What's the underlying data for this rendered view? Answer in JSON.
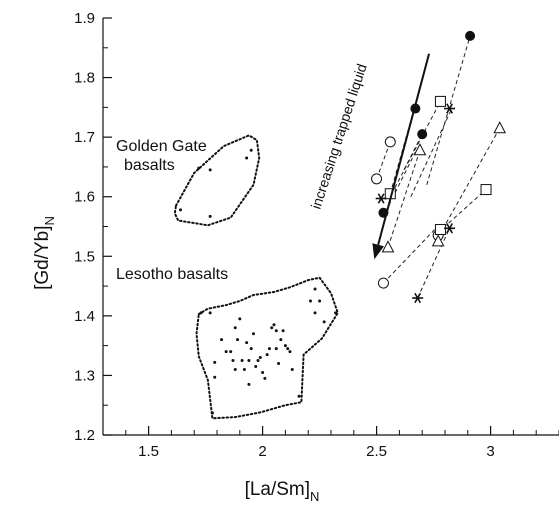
{
  "chart_data": {
    "type": "scatter",
    "xlabel": "[La/Sm]",
    "xlabel_sub": "N",
    "ylabel": "[Gd/Yb]",
    "ylabel_sub": "N",
    "xlim": [
      1.3,
      3.3
    ],
    "ylim": [
      1.2,
      1.9
    ],
    "x_ticks": [
      1.5,
      2,
      2.5,
      3
    ],
    "x_tick_labels": [
      "1.5",
      "2",
      "2.5",
      "3"
    ],
    "y_ticks": [
      1.2,
      1.3,
      1.4,
      1.5,
      1.6,
      1.7,
      1.8,
      1.9
    ],
    "y_tick_labels": [
      "1.2",
      "1.3",
      "1.4",
      "1.5",
      "1.6",
      "1.7",
      "1.8",
      "1.9"
    ],
    "grid": false,
    "annotations": {
      "golden_gate_line1": "Golden Gate",
      "golden_gate_line2": "basalts",
      "lesotho": "Lesotho basalts",
      "arrow_label": "increasing trapped liquid"
    },
    "regions": [
      {
        "label": "Golden Gate basalts",
        "outline": [
          [
            1.62,
            1.585
          ],
          [
            1.7,
            1.64
          ],
          [
            1.83,
            1.685
          ],
          [
            1.94,
            1.703
          ],
          [
            1.975,
            1.695
          ],
          [
            1.985,
            1.665
          ],
          [
            1.96,
            1.62
          ],
          [
            1.86,
            1.565
          ],
          [
            1.76,
            1.552
          ],
          [
            1.63,
            1.56
          ],
          [
            1.615,
            1.572
          ]
        ],
        "points": [
          [
            1.64,
            1.578
          ],
          [
            1.72,
            1.648
          ],
          [
            1.77,
            1.645
          ],
          [
            1.77,
            1.567
          ],
          [
            1.93,
            1.665
          ],
          [
            1.95,
            1.678
          ]
        ]
      },
      {
        "label": "Lesotho basalts",
        "outline": [
          [
            1.72,
            1.403
          ],
          [
            1.76,
            1.412
          ],
          [
            1.84,
            1.418
          ],
          [
            1.9,
            1.425
          ],
          [
            1.96,
            1.435
          ],
          [
            2.05,
            1.44
          ],
          [
            2.12,
            1.448
          ],
          [
            2.2,
            1.46
          ],
          [
            2.25,
            1.464
          ],
          [
            2.3,
            1.438
          ],
          [
            2.33,
            1.405
          ],
          [
            2.26,
            1.362
          ],
          [
            2.18,
            1.335
          ],
          [
            2.17,
            1.255
          ],
          [
            2.1,
            1.25
          ],
          [
            1.99,
            1.238
          ],
          [
            1.88,
            1.23
          ],
          [
            1.78,
            1.228
          ],
          [
            1.76,
            1.292
          ],
          [
            1.72,
            1.332
          ],
          [
            1.71,
            1.37
          ]
        ],
        "points": [
          [
            1.73,
            1.405
          ],
          [
            1.77,
            1.405
          ],
          [
            1.79,
            1.322
          ],
          [
            1.79,
            1.297
          ],
          [
            1.78,
            1.237
          ],
          [
            1.82,
            1.36
          ],
          [
            1.84,
            1.34
          ],
          [
            1.86,
            1.34
          ],
          [
            1.87,
            1.325
          ],
          [
            1.88,
            1.38
          ],
          [
            1.88,
            1.31
          ],
          [
            1.89,
            1.36
          ],
          [
            1.9,
            1.395
          ],
          [
            1.91,
            1.325
          ],
          [
            1.92,
            1.31
          ],
          [
            1.93,
            1.355
          ],
          [
            1.94,
            1.285
          ],
          [
            1.94,
            1.325
          ],
          [
            1.95,
            1.345
          ],
          [
            1.96,
            1.37
          ],
          [
            1.97,
            1.315
          ],
          [
            1.98,
            1.325
          ],
          [
            1.99,
            1.33
          ],
          [
            2.0,
            1.305
          ],
          [
            2.01,
            1.295
          ],
          [
            2.02,
            1.335
          ],
          [
            2.03,
            1.345
          ],
          [
            2.04,
            1.38
          ],
          [
            2.05,
            1.385
          ],
          [
            2.06,
            1.375
          ],
          [
            2.06,
            1.345
          ],
          [
            2.07,
            1.32
          ],
          [
            2.08,
            1.36
          ],
          [
            2.09,
            1.375
          ],
          [
            2.1,
            1.35
          ],
          [
            2.11,
            1.345
          ],
          [
            2.12,
            1.34
          ],
          [
            2.13,
            1.31
          ],
          [
            2.16,
            1.265
          ],
          [
            2.21,
            1.425
          ],
          [
            2.23,
            1.405
          ],
          [
            2.25,
            1.425
          ],
          [
            2.27,
            1.39
          ],
          [
            2.32,
            1.405
          ],
          [
            2.23,
            1.445
          ]
        ]
      }
    ],
    "tie_lines": [
      [
        [
          2.5,
          1.63
        ],
        [
          2.56,
          1.692
        ]
      ],
      [
        [
          2.56,
          1.605
        ],
        [
          2.67,
          1.755
        ]
      ],
      [
        [
          2.58,
          1.615
        ],
        [
          2.78,
          1.76
        ]
      ],
      [
        [
          2.62,
          1.645
        ],
        [
          2.7,
          1.705
        ]
      ],
      [
        [
          2.65,
          1.6
        ],
        [
          2.83,
          1.748
        ]
      ],
      [
        [
          2.54,
          1.575
        ],
        [
          2.67,
          1.675
        ]
      ],
      [
        [
          2.72,
          1.62
        ],
        [
          2.91,
          1.87
        ]
      ],
      [
        [
          2.55,
          1.515
        ],
        [
          2.69,
          1.678
        ]
      ],
      [
        [
          2.53,
          1.455
        ],
        [
          2.78,
          1.555
        ]
      ],
      [
        [
          2.68,
          1.43
        ],
        [
          2.82,
          1.547
        ]
      ],
      [
        [
          2.76,
          1.525
        ],
        [
          3.04,
          1.715
        ]
      ],
      [
        [
          2.77,
          1.54
        ],
        [
          2.98,
          1.612
        ]
      ]
    ],
    "series": [
      {
        "marker": "filled-circle",
        "points": [
          [
            2.53,
            1.573
          ],
          [
            2.67,
            1.748
          ],
          [
            2.7,
            1.705
          ],
          [
            2.91,
            1.87
          ]
        ]
      },
      {
        "marker": "open-circle",
        "points": [
          [
            2.5,
            1.63
          ],
          [
            2.56,
            1.692
          ],
          [
            2.53,
            1.455
          ],
          [
            2.77,
            1.535
          ]
        ]
      },
      {
        "marker": "open-square",
        "points": [
          [
            2.56,
            1.605
          ],
          [
            2.78,
            1.76
          ],
          [
            2.78,
            1.545
          ],
          [
            2.98,
            1.612
          ]
        ]
      },
      {
        "marker": "open-triangle",
        "points": [
          [
            2.55,
            1.515
          ],
          [
            2.69,
            1.678
          ],
          [
            2.77,
            1.525
          ],
          [
            3.04,
            1.715
          ]
        ]
      },
      {
        "marker": "asterisk",
        "points": [
          [
            2.52,
            1.597
          ],
          [
            2.82,
            1.748
          ],
          [
            2.68,
            1.43
          ],
          [
            2.82,
            1.547
          ]
        ]
      }
    ],
    "trend_arrow": {
      "from": [
        2.73,
        1.84
      ],
      "to": [
        2.49,
        1.495
      ]
    }
  }
}
